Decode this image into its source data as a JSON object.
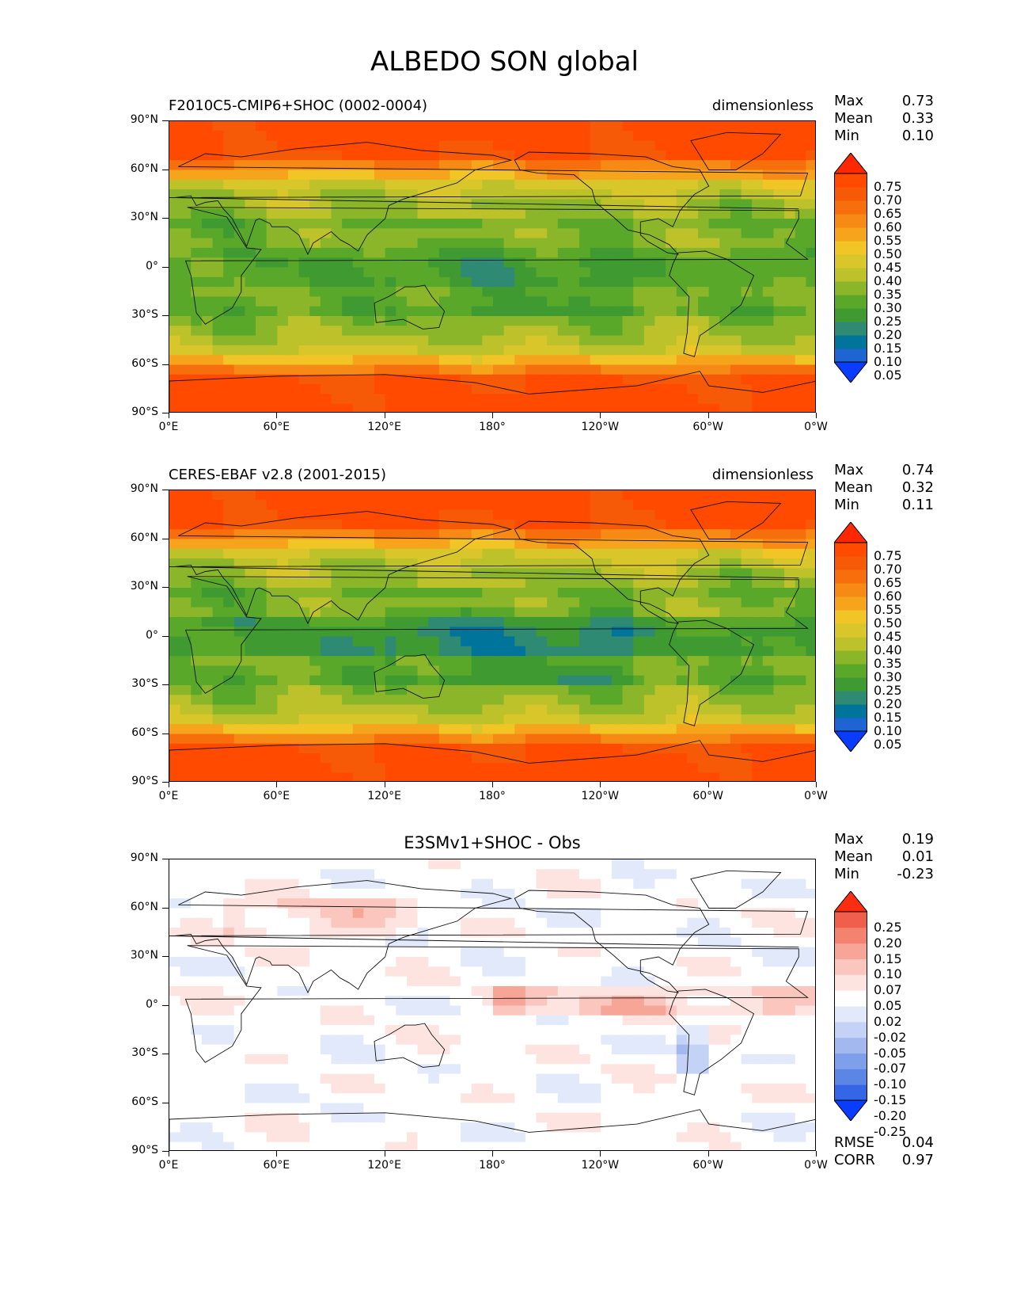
{
  "title": "ALBEDO SON global",
  "lat_ticks": [
    "90°N",
    "60°N",
    "30°N",
    "0°",
    "30°S",
    "60°S",
    "90°S"
  ],
  "lon_ticks": [
    "0°E",
    "60°E",
    "120°E",
    "180°",
    "120°W",
    "60°W",
    "0°W"
  ],
  "colors": {
    "abs_levels": [
      "#0a3cff",
      "#1e64d2",
      "#00749b",
      "#2e8a72",
      "#3f9b31",
      "#5aa82a",
      "#8cb62a",
      "#bdc12a",
      "#d8c62a",
      "#f0c525",
      "#f7a41d",
      "#f78a14",
      "#f76e0c",
      "#f65a06",
      "#ff4a00",
      "#ff2800"
    ],
    "diff_levels": [
      "#0a3cff",
      "#3566e8",
      "#5b86e6",
      "#7e9fe9",
      "#a2b8ef",
      "#c4d2f6",
      "#e2e9fb",
      "#ffffff",
      "#fde4e0",
      "#fbc6bd",
      "#f7a596",
      "#f3826f",
      "#ef5f4b",
      "#ff2d10"
    ]
  },
  "panels": [
    {
      "title_left": "F2010C5-CMIP6+SHOC (0002-0004)",
      "title_right": "dimensionless",
      "title_center": "",
      "stats": [
        {
          "label": "Max",
          "value": "0.73"
        },
        {
          "label": "Mean",
          "value": "0.33"
        },
        {
          "label": "Min",
          "value": "0.10"
        }
      ],
      "colorbar_labels": [
        "0.75",
        "0.70",
        "0.65",
        "0.60",
        "0.55",
        "0.50",
        "0.45",
        "0.40",
        "0.35",
        "0.30",
        "0.25",
        "0.20",
        "0.15",
        "0.10",
        "0.05"
      ],
      "footer": []
    },
    {
      "title_left": "CERES-EBAF v2.8 (2001-2015)",
      "title_right": "dimensionless",
      "title_center": "",
      "stats": [
        {
          "label": "Max",
          "value": "0.74"
        },
        {
          "label": "Mean",
          "value": "0.32"
        },
        {
          "label": "Min",
          "value": "0.11"
        }
      ],
      "colorbar_labels": [
        "0.75",
        "0.70",
        "0.65",
        "0.60",
        "0.55",
        "0.50",
        "0.45",
        "0.40",
        "0.35",
        "0.30",
        "0.25",
        "0.20",
        "0.15",
        "0.10",
        "0.05"
      ],
      "footer": []
    },
    {
      "title_left": "",
      "title_right": "",
      "title_center": "E3SMv1+SHOC - Obs",
      "stats": [
        {
          "label": "Max",
          "value": "0.19"
        },
        {
          "label": "Mean",
          "value": "0.01"
        },
        {
          "label": "Min",
          "value": "-0.23"
        }
      ],
      "colorbar_labels": [
        "0.25",
        "0.20",
        "0.15",
        "0.10",
        "0.07",
        "0.05",
        "0.02",
        "-0.02",
        "-0.05",
        "-0.07",
        "-0.10",
        "-0.15",
        "-0.20",
        "-0.25"
      ],
      "footer": [
        {
          "label": "RMSE",
          "value": "0.04"
        },
        {
          "label": "CORR",
          "value": "0.97"
        }
      ]
    }
  ]
}
